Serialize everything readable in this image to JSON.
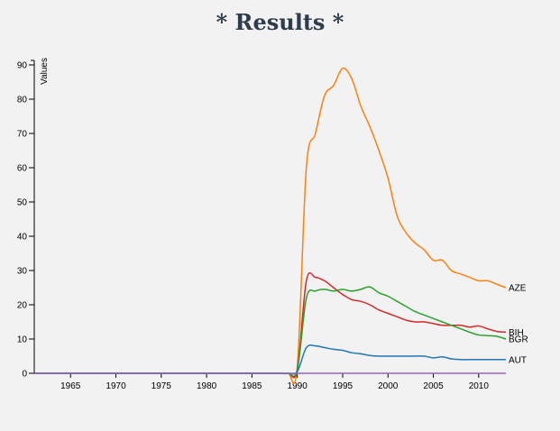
{
  "title": "* Results *",
  "chart_data": {
    "type": "line",
    "title": "* Results *",
    "xlabel": "",
    "ylabel": "Values",
    "xlim": [
      1961,
      2013
    ],
    "ylim": [
      0,
      90
    ],
    "x_ticks": [
      1965,
      1970,
      1975,
      1980,
      1985,
      1990,
      1995,
      2000,
      2005,
      2010
    ],
    "y_ticks": [
      0,
      10,
      20,
      30,
      40,
      50,
      60,
      70,
      80,
      90
    ],
    "grid": false,
    "legend": "end-of-line labels",
    "x": [
      1961,
      1962,
      1963,
      1964,
      1965,
      1966,
      1967,
      1968,
      1969,
      1970,
      1971,
      1972,
      1973,
      1974,
      1975,
      1976,
      1977,
      1978,
      1979,
      1980,
      1981,
      1982,
      1983,
      1984,
      1985,
      1986,
      1987,
      1988,
      1989,
      1990,
      1991,
      1992,
      1993,
      1994,
      1995,
      1996,
      1997,
      1998,
      1999,
      2000,
      2001,
      2002,
      2003,
      2004,
      2005,
      2006,
      2007,
      2008,
      2009,
      2010,
      2011,
      2012,
      2013
    ],
    "series": [
      {
        "name": "AZE",
        "color": "#ff7f0e",
        "values": [
          0,
          0,
          0,
          0,
          0,
          0,
          0,
          0,
          0,
          0,
          0,
          0,
          0,
          0,
          0,
          0,
          0,
          0,
          0,
          0,
          0,
          0,
          0,
          0,
          0,
          0,
          0,
          0,
          0,
          2,
          60,
          70,
          81,
          84,
          89,
          86,
          78,
          72,
          65,
          57,
          46,
          41,
          38,
          36,
          33,
          33,
          30,
          29,
          28,
          27,
          27,
          26,
          25
        ]
      },
      {
        "name": "BIH",
        "color": "#d62728",
        "values": [
          0,
          0,
          0,
          0,
          0,
          0,
          0,
          0,
          0,
          0,
          0,
          0,
          0,
          0,
          0,
          0,
          0,
          0,
          0,
          0,
          0,
          0,
          0,
          0,
          0,
          0,
          0,
          0,
          0,
          1,
          27,
          28,
          27,
          25,
          23,
          21.5,
          21,
          20,
          18.5,
          17.5,
          16.5,
          15.5,
          15,
          15,
          14.5,
          14,
          14,
          14,
          13.5,
          13.8,
          13,
          12.2,
          12
        ]
      },
      {
        "name": "BGR",
        "color": "#2ca02c",
        "values": [
          0,
          0,
          0,
          0,
          0,
          0,
          0,
          0,
          0,
          0,
          0,
          0,
          0,
          0,
          0,
          0,
          0,
          0,
          0,
          0,
          0,
          0,
          0,
          0,
          0,
          0,
          0,
          0,
          0,
          1,
          22,
          24,
          24.5,
          24,
          24.5,
          24,
          24.5,
          25.2,
          23.5,
          22.5,
          21,
          19.5,
          18,
          17,
          16,
          15,
          14,
          13,
          12,
          11.2,
          11,
          10.8,
          10
        ]
      },
      {
        "name": "AUT",
        "color": "#1f77b4",
        "values": [
          0,
          0,
          0,
          0,
          0,
          0,
          0,
          0,
          0,
          0,
          0,
          0,
          0,
          0,
          0,
          0,
          0,
          0,
          0,
          0,
          0,
          0,
          0,
          0,
          0,
          0,
          0,
          0,
          0,
          0.5,
          7.5,
          8,
          7.5,
          7,
          6.7,
          6,
          5.7,
          5.2,
          5,
          5,
          5,
          5,
          5,
          5,
          4.5,
          4.8,
          4.2,
          4,
          4,
          4,
          4,
          4,
          4
        ]
      },
      {
        "name": "",
        "color": "#9467bd",
        "values": [
          0,
          0,
          0,
          0,
          0,
          0,
          0,
          0,
          0,
          0,
          0,
          0,
          0,
          0,
          0,
          0,
          0,
          0,
          0,
          0,
          0,
          0,
          0,
          0,
          0,
          0,
          0,
          0,
          0,
          0,
          0,
          0,
          0,
          0,
          0,
          0,
          0,
          0,
          0,
          0,
          0,
          0,
          0,
          0,
          0,
          0,
          0,
          0,
          0,
          0,
          0,
          0,
          0
        ]
      }
    ]
  }
}
